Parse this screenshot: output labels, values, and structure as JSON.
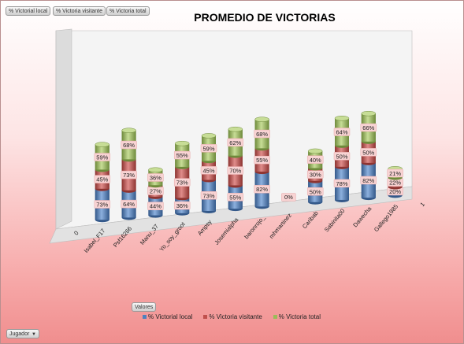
{
  "filters": {
    "local": "% Victorial local",
    "visitante": "% Victoria visitante",
    "total": "% Victoria total",
    "valores": "Valores",
    "jugador": "Jugador"
  },
  "chart_data": {
    "type": "bar",
    "subtype": "stacked-3d-cylinder",
    "title": "PROMEDIO DE VICTORIAS",
    "categories": [
      "0",
      "Isabel_F17",
      "Psf16266",
      "Manu_37",
      "Yo_soy_groot",
      "Ampsy",
      "Josemialpha",
      "baronrojo_",
      "mhmartinez",
      "Caribab",
      "Sabinita00",
      "Dawecha",
      "Gallego1985",
      "1"
    ],
    "series": [
      {
        "name": "% Victorial local",
        "color": "#4f81bd",
        "values": [
          null,
          73,
          64,
          44,
          36,
          73,
          55,
          82,
          0,
          50,
          78,
          82,
          20,
          null
        ]
      },
      {
        "name": "% Victoria visitante",
        "color": "#c0504d",
        "values": [
          null,
          45,
          73,
          27,
          73,
          45,
          70,
          55,
          0,
          30,
          50,
          50,
          22,
          null
        ]
      },
      {
        "name": "% Victoria total",
        "color": "#9bbb59",
        "values": [
          null,
          59,
          68,
          36,
          55,
          59,
          62,
          68,
          0,
          40,
          64,
          66,
          21,
          null
        ]
      }
    ],
    "legend_position": "bottom"
  }
}
